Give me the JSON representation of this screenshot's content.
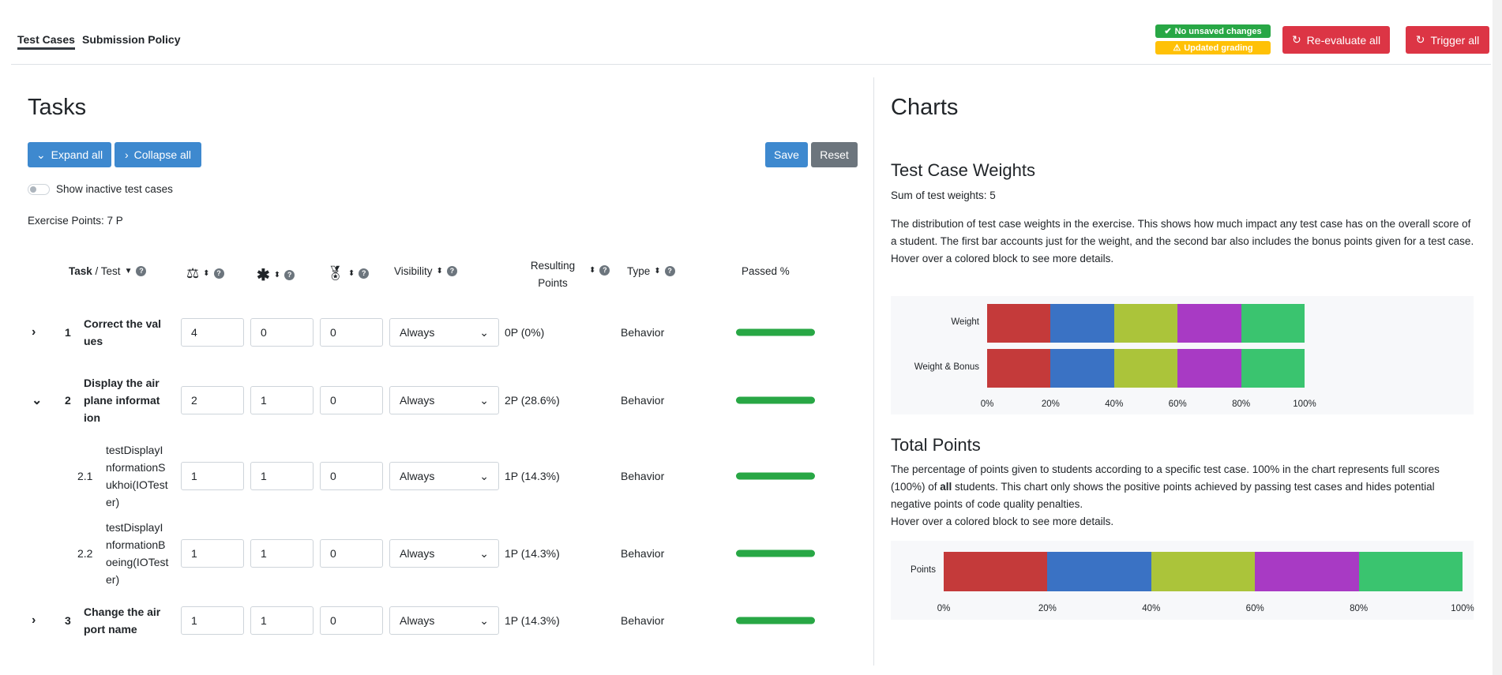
{
  "tabs": [
    {
      "label": "Test Cases",
      "active": true
    },
    {
      "label": "Submission Policy",
      "active": false
    }
  ],
  "status": {
    "saved": "No unsaved changes",
    "grading": "Updated grading"
  },
  "actions": {
    "reevaluate": "Re-evaluate all",
    "trigger": "Trigger all"
  },
  "tasks": {
    "title": "Tasks",
    "expand": "Expand all",
    "collapse": "Collapse all",
    "save": "Save",
    "reset": "Reset",
    "show_inactive": "Show inactive test cases",
    "show_inactive_on": false,
    "exercise_points": "Exercise Points: 7 P",
    "headers": {
      "task": "Task",
      "test": " / Test",
      "visibility": "Visibility",
      "resulting": "Resulting Points",
      "type": "Type",
      "passed": "Passed %"
    },
    "rows": [
      {
        "num": "1",
        "name": "Correct the values",
        "weight": "4",
        "multiplier": "0",
        "bonus": "0",
        "visibility": "Always",
        "points": "0P (0%)",
        "type": "Behavior",
        "passed": 100,
        "expander": "chevron-right",
        "bold": true
      },
      {
        "num": "2",
        "name": "Display the airplane information",
        "weight": "2",
        "multiplier": "1",
        "bonus": "0",
        "visibility": "Always",
        "points": "2P (28.6%)",
        "type": "Behavior",
        "passed": 100,
        "expander": "chevron-down",
        "bold": true
      },
      {
        "num": "2.1",
        "name": "testDisplayInformationSukhoi(IOTester)",
        "weight": "1",
        "multiplier": "1",
        "bonus": "0",
        "visibility": "Always",
        "points": "1P (14.3%)",
        "type": "Behavior",
        "passed": 100,
        "expander": "",
        "bold": false
      },
      {
        "num": "2.2",
        "name": "testDisplayInformationBoeing(IOTester)",
        "weight": "1",
        "multiplier": "1",
        "bonus": "0",
        "visibility": "Always",
        "points": "1P (14.3%)",
        "type": "Behavior",
        "passed": 100,
        "expander": "",
        "bold": false
      },
      {
        "num": "3",
        "name": "Change the airport name",
        "weight": "1",
        "multiplier": "1",
        "bonus": "0",
        "visibility": "Always",
        "points": "1P (14.3%)",
        "type": "Behavior",
        "passed": 100,
        "expander": "chevron-right",
        "bold": true
      }
    ]
  },
  "charts": {
    "title": "Charts",
    "weights_title": "Test Case Weights",
    "sum": "Sum of test weights: 5",
    "weights_desc": "The distribution of test case weights in the exercise. This shows how much impact any test case has on the overall score of a student. The first bar accounts just for the weight, and the second bar also includes the bonus points given for a test case.",
    "hover": "Hover over a colored block to see more details.",
    "points_title": "Total Points",
    "points_desc_1": "The percentage of points given to students according to a specific test case. 100% in the chart represents full scores (100%) of ",
    "points_desc_bold": "all",
    "points_desc_2": " students. This chart only shows the positive points achieved by passing test cases and hides potential negative points of code quality penalties."
  },
  "chart_data": [
    {
      "type": "bar",
      "orientation": "horizontal",
      "stacked": true,
      "categories": [
        "Weight",
        "Weight & Bonus"
      ],
      "xlim": [
        0,
        100
      ],
      "ticks": [
        "0%",
        "20%",
        "40%",
        "60%",
        "80%",
        "100%"
      ],
      "series": [
        {
          "values": [
            20,
            20
          ],
          "color": "#c43a3a"
        },
        {
          "values": [
            20,
            20
          ],
          "color": "#3a72c4"
        },
        {
          "values": [
            20,
            20
          ],
          "color": "#abc43a"
        },
        {
          "values": [
            20,
            20
          ],
          "color": "#a83ac4"
        },
        {
          "values": [
            20,
            20
          ],
          "color": "#3ac46f"
        }
      ]
    },
    {
      "type": "bar",
      "orientation": "horizontal",
      "stacked": true,
      "categories": [
        "Points"
      ],
      "xlim": [
        0,
        100
      ],
      "ticks": [
        "0%",
        "20%",
        "40%",
        "60%",
        "80%",
        "100%"
      ],
      "series": [
        {
          "values": [
            20
          ],
          "color": "#c43a3a"
        },
        {
          "values": [
            20
          ],
          "color": "#3a72c4"
        },
        {
          "values": [
            20
          ],
          "color": "#abc43a"
        },
        {
          "values": [
            20
          ],
          "color": "#a83ac4"
        },
        {
          "values": [
            20
          ],
          "color": "#3ac46f"
        }
      ]
    }
  ]
}
